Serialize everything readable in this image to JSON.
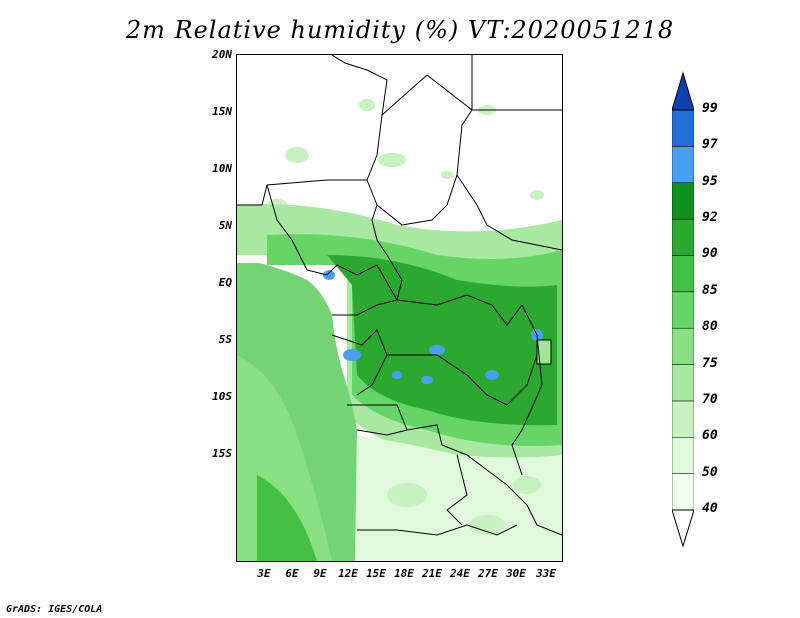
{
  "title": "2m Relative humidity (%) VT:2020051218",
  "credit": "GrADS: IGES/COLA",
  "lat_labels": [
    "20N",
    "15N",
    "10N",
    "5N",
    "EQ",
    "5S",
    "10S",
    "15S"
  ],
  "lon_labels": [
    "3E",
    "6E",
    "9E",
    "12E",
    "15E",
    "18E",
    "21E",
    "24E",
    "27E",
    "30E",
    "33E"
  ],
  "colorbar": {
    "levels": [
      "40",
      "50",
      "60",
      "70",
      "75",
      "80",
      "85",
      "90",
      "92",
      "95",
      "97",
      "99"
    ],
    "colors": [
      "#f0fff0",
      "#e0f8dc",
      "#c8f0c0",
      "#a8e8a0",
      "#88e080",
      "#66d466",
      "#44c044",
      "#2aa830",
      "#10901c",
      "#4aa0f0",
      "#2070d8",
      "#1040b0"
    ]
  },
  "colors": {
    "ocean": "#74d474",
    "border": "#000000",
    "lake": "#9ee898"
  }
}
